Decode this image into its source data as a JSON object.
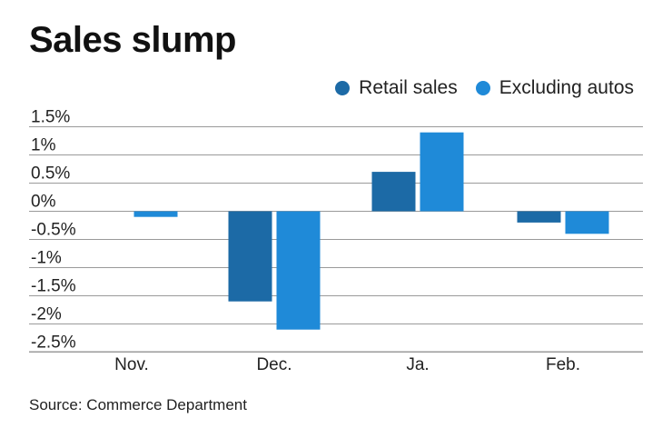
{
  "title": "Sales slump",
  "source": "Source: Commerce Department",
  "chart_data": {
    "type": "bar",
    "categories": [
      "Nov.",
      "Dec.",
      "Ja.",
      "Feb."
    ],
    "series": [
      {
        "name": "Retail sales",
        "color": "#1c6aa6",
        "values": [
          null,
          -1.6,
          0.7,
          -0.2
        ]
      },
      {
        "name": "Excluding autos",
        "color": "#1f8ad8",
        "values": [
          -0.1,
          -2.1,
          1.4,
          -0.4
        ]
      }
    ],
    "yticks": [
      1.5,
      1,
      0.5,
      0,
      -0.5,
      -1,
      -1.5,
      -2,
      -2.5
    ],
    "ytick_labels": [
      "1.5%",
      "1%",
      "0.5%",
      "0%",
      "-0.5%",
      "-1%",
      "-1.5%",
      "-2%",
      "-2.5%"
    ],
    "ylim": [
      -2.5,
      1.5
    ],
    "grid": true,
    "legend": "top-right"
  }
}
